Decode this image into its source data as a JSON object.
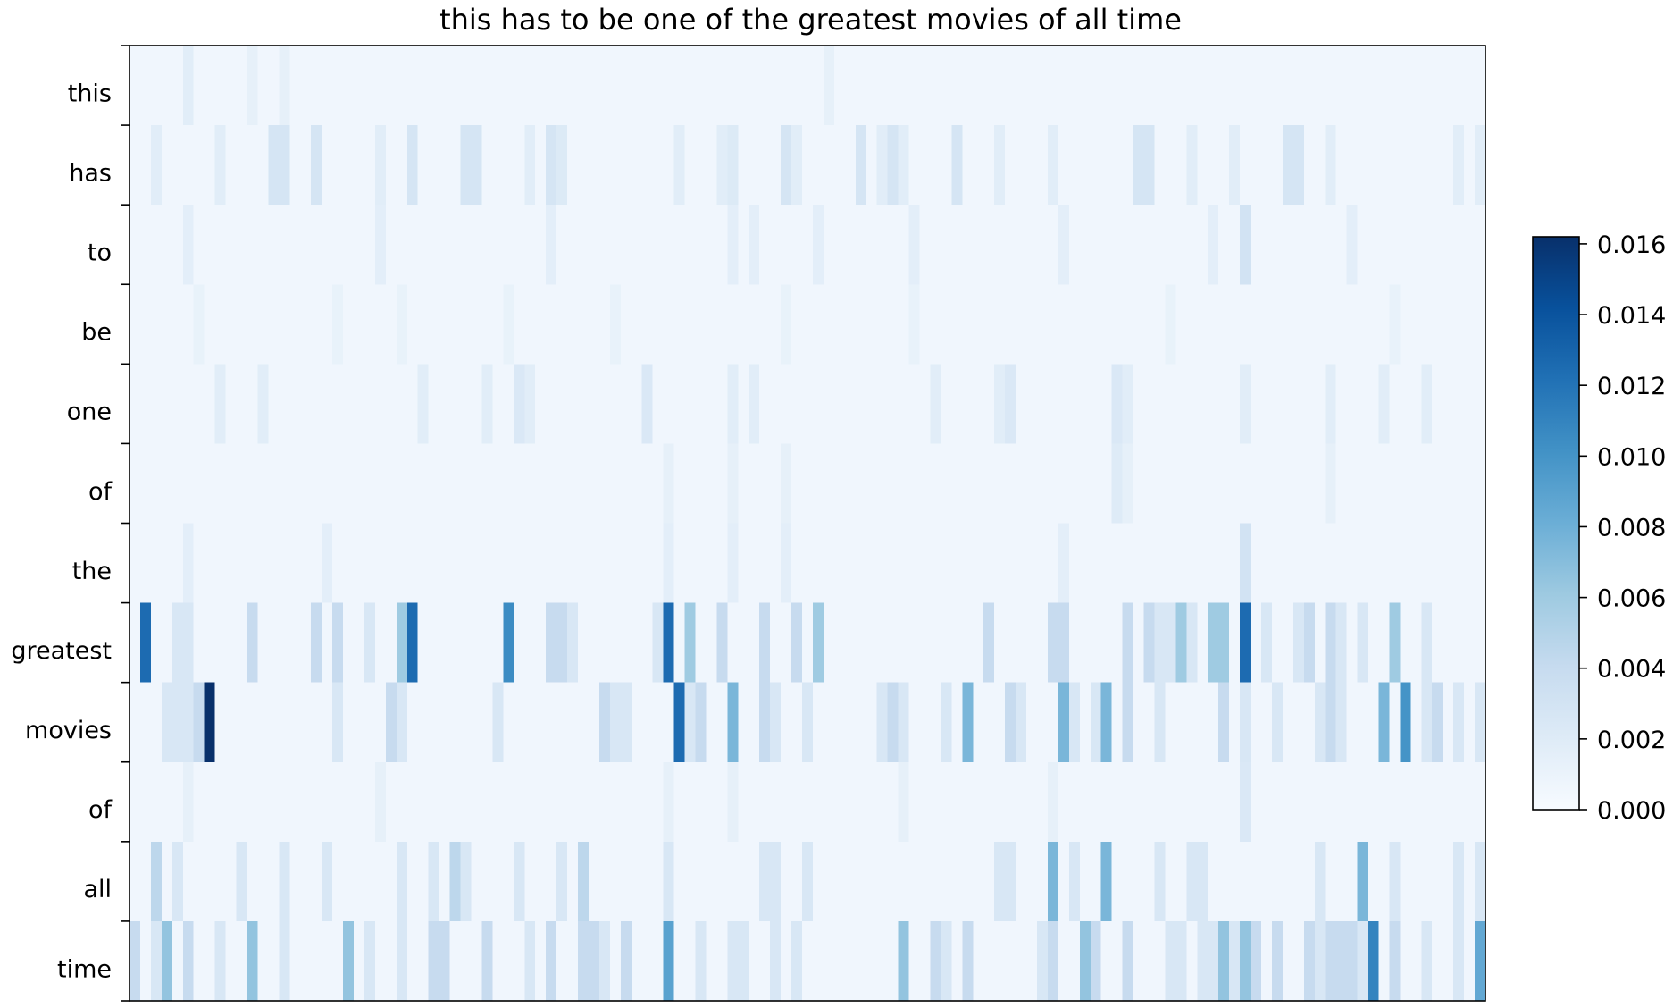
{
  "chart_data": {
    "type": "heatmap",
    "title": "this has to be one of the greatest movies of all time",
    "xlabel": "",
    "ylabel": "",
    "y_labels": [
      "this",
      "has",
      "to",
      "be",
      "one",
      "of",
      "the",
      "greatest",
      "movies",
      "of",
      "all",
      "time"
    ],
    "n_columns": 127,
    "colormap": "Blues",
    "colorbar": {
      "min": 0.0,
      "max": 0.0162,
      "ticks": [
        0.0,
        0.002,
        0.004,
        0.006,
        0.008,
        0.01,
        0.012,
        0.014,
        0.016
      ],
      "tick_labels": [
        "0.000",
        "0.002",
        "0.004",
        "0.006",
        "0.008",
        "0.010",
        "0.012",
        "0.014",
        "0.016"
      ]
    },
    "baseline_value": 0.0006,
    "highlights": [
      {
        "row": "this",
        "cols": [
          5
        ],
        "value": 0.0018
      },
      {
        "row": "this",
        "cols": [
          11,
          14,
          65
        ],
        "value": 0.0014
      },
      {
        "row": "has",
        "cols": [
          13,
          14,
          17,
          26,
          31,
          32,
          39,
          61,
          68,
          71,
          77,
          94,
          95,
          108,
          109
        ],
        "value": 0.0028
      },
      {
        "row": "has",
        "cols": [
          2,
          8,
          23,
          37,
          51,
          55,
          62,
          70,
          72,
          81,
          86,
          99,
          103,
          112,
          124,
          126
        ],
        "value": 0.0018
      },
      {
        "row": "has",
        "cols": [
          40,
          56
        ],
        "value": 0.0022
      },
      {
        "row": "to",
        "cols": [
          5,
          23,
          39,
          56,
          58,
          64,
          73,
          87,
          101,
          104,
          114
        ],
        "value": 0.0016
      },
      {
        "row": "to",
        "cols": [
          104
        ],
        "value": 0.003
      },
      {
        "row": "be",
        "cols": [
          6,
          19,
          25,
          35,
          45,
          61,
          73,
          97,
          118
        ],
        "value": 0.0012
      },
      {
        "row": "one",
        "cols": [
          8,
          12,
          27,
          33,
          37,
          48,
          56,
          58,
          75,
          81,
          93,
          104,
          112,
          117,
          121
        ],
        "value": 0.0018
      },
      {
        "row": "one",
        "cols": [
          36,
          48,
          82,
          92
        ],
        "value": 0.0024
      },
      {
        "row": "of",
        "cols": [
          50,
          56,
          61,
          93,
          112
        ],
        "value": 0.0014
      },
      {
        "row": "of",
        "cols": [
          92
        ],
        "value": 0.002
      },
      {
        "row": "the",
        "cols": [
          5,
          18,
          50,
          56,
          61,
          87,
          104
        ],
        "value": 0.0016
      },
      {
        "row": "the",
        "cols": [
          104
        ],
        "value": 0.003
      },
      {
        "row": "greatest",
        "cols": [
          1,
          26,
          50,
          104
        ],
        "value": 0.0125
      },
      {
        "row": "greatest",
        "cols": [
          35
        ],
        "value": 0.0105
      },
      {
        "row": "greatest",
        "cols": [
          25,
          52,
          64,
          98,
          101,
          102,
          118
        ],
        "value": 0.006
      },
      {
        "row": "greatest",
        "cols": [
          11,
          17,
          19,
          39,
          40,
          55,
          59,
          62,
          80,
          86,
          87,
          93,
          95,
          110,
          112
        ],
        "value": 0.004
      },
      {
        "row": "greatest",
        "cols": [
          4,
          5,
          22,
          41,
          49,
          96,
          97,
          99,
          106,
          109,
          113,
          115,
          121
        ],
        "value": 0.0025
      },
      {
        "row": "movies",
        "cols": [
          7
        ],
        "value": 0.0162
      },
      {
        "row": "movies",
        "cols": [
          51
        ],
        "value": 0.0125
      },
      {
        "row": "movies",
        "cols": [
          119
        ],
        "value": 0.01
      },
      {
        "row": "movies",
        "cols": [
          56,
          78,
          87,
          91,
          117
        ],
        "value": 0.0075
      },
      {
        "row": "movies",
        "cols": [
          6,
          24,
          44,
          53,
          59,
          71,
          82,
          93,
          102,
          112,
          122
        ],
        "value": 0.004
      },
      {
        "row": "movies",
        "cols": [
          3,
          4,
          5,
          19,
          25,
          34,
          45,
          46,
          52,
          60,
          63,
          70,
          72,
          76,
          83,
          88,
          90,
          96,
          104,
          107,
          111,
          113,
          121,
          124,
          126
        ],
        "value": 0.0025
      },
      {
        "row": "of",
        "cols": [
          5,
          23,
          50,
          56,
          72,
          86,
          104
        ],
        "value": 0.0014
      },
      {
        "row": "of",
        "cols": [
          104
        ],
        "value": 0.0024
      },
      {
        "row": "all",
        "cols": [
          86,
          91,
          115
        ],
        "value": 0.0075
      },
      {
        "row": "all",
        "cols": [
          2,
          30,
          42
        ],
        "value": 0.0045
      },
      {
        "row": "all",
        "cols": [
          4,
          10,
          14,
          18,
          25,
          28,
          31,
          36,
          40,
          50,
          59,
          60,
          63,
          81,
          82,
          88,
          96,
          99,
          100,
          111,
          118,
          124,
          126
        ],
        "value": 0.0025
      },
      {
        "row": "time",
        "cols": [
          50
        ],
        "value": 0.009
      },
      {
        "row": "time",
        "cols": [
          116
        ],
        "value": 0.011
      },
      {
        "row": "time",
        "cols": [
          126
        ],
        "value": 0.0085
      },
      {
        "row": "time",
        "cols": [
          3,
          11,
          20,
          72,
          89,
          102,
          104
        ],
        "value": 0.0065
      },
      {
        "row": "time",
        "cols": [
          0,
          5,
          28,
          29,
          33,
          39,
          42,
          43,
          46,
          75,
          78,
          86,
          90,
          93,
          105,
          107,
          110,
          112,
          113,
          114,
          118
        ],
        "value": 0.004
      },
      {
        "row": "time",
        "cols": [
          2,
          8,
          14,
          22,
          25,
          37,
          44,
          53,
          56,
          57,
          60,
          62,
          76,
          85,
          97,
          98,
          100,
          101,
          103,
          111,
          115,
          121,
          124
        ],
        "value": 0.0025
      }
    ]
  }
}
